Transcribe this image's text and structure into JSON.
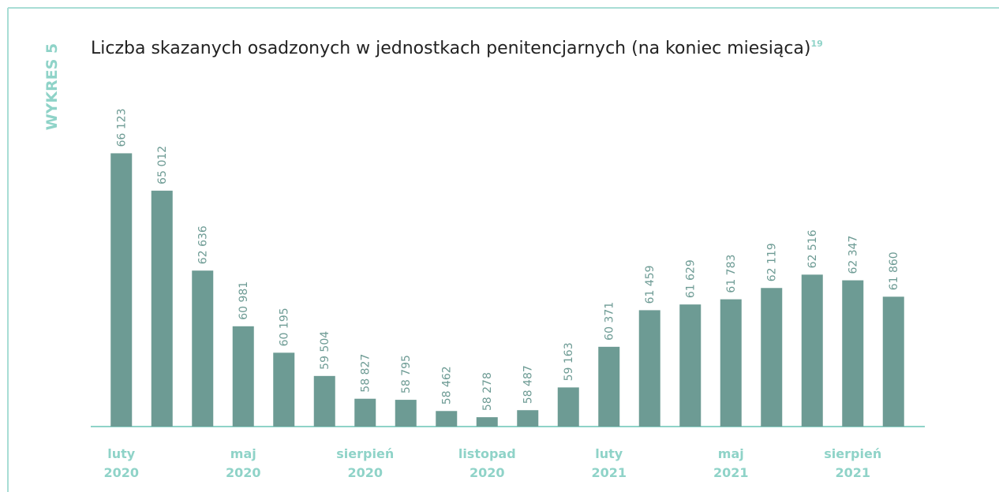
{
  "chart_data": {
    "type": "bar",
    "side_label": "WYKRES 5",
    "title": "Liczba skazanych osadzonych w jednostkach penitencjarnych (na koniec miesiąca)",
    "footnote": "19",
    "categories": [
      "luty 2020",
      null,
      null,
      "maj 2020",
      null,
      null,
      "sierpień 2020",
      null,
      null,
      "listopad 2020",
      null,
      null,
      "luty 2021",
      null,
      null,
      "maj 2021",
      null,
      null,
      "sierpień 2021",
      null
    ],
    "values": [
      66123,
      65012,
      62636,
      60981,
      60195,
      59504,
      58827,
      58795,
      58462,
      58278,
      58487,
      59163,
      60371,
      61459,
      61629,
      61783,
      62119,
      62516,
      62347,
      61860
    ],
    "value_labels": [
      "66 123",
      "65 012",
      "62 636",
      "60 981",
      "60 195",
      "59 504",
      "58 827",
      "58 795",
      "58 462",
      "58 278",
      "58 487",
      "59 163",
      "60 371",
      "61 459",
      "61 629",
      "61 783",
      "62 119",
      "62 516",
      "62 347",
      "61 860"
    ],
    "color": "#6d9b94",
    "ylim": [
      58000,
      67000
    ]
  }
}
